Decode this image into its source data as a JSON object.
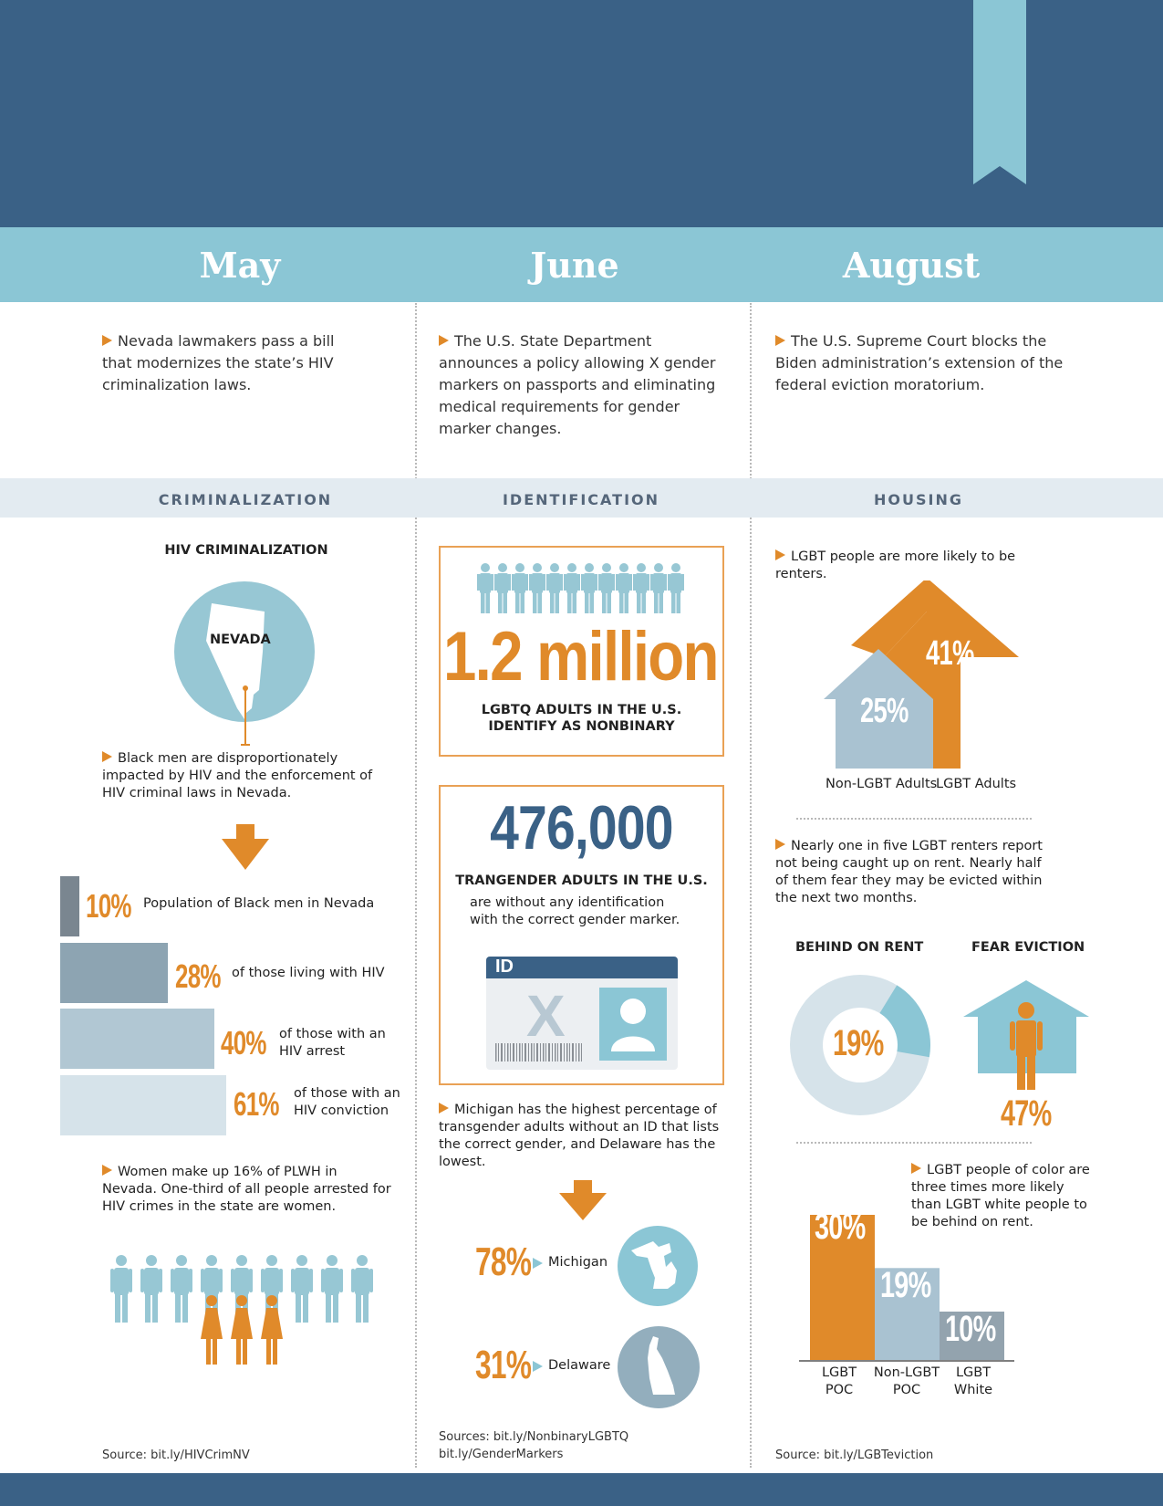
{
  "timeline": {
    "months": [
      "May",
      "June",
      "August"
    ],
    "may_text": "Nevada lawmakers pass a bill that modernizes the state’s HIV criminalization laws.",
    "june_text": "The U.S. State Department announces a policy allowing X gender markers on passports and eliminating medical requirements for gender marker changes.",
    "august_text": "The U.S. Supreme Court blocks the Biden administration’s extension of the federal eviction moratorium."
  },
  "sections": [
    "CRIMINALIZATION",
    "IDENTIFICATION",
    "HOUSING"
  ],
  "criminalization": {
    "heading": "HIV CRIMINALIZATION",
    "map_label": "NEVADA",
    "text1": "Black men are disproportionately impacted by HIV and the enforcement of HIV criminal laws in Nevada.",
    "bars": [
      {
        "pct": "10%",
        "value": 10,
        "label": "Population of Black men in Nevada",
        "color": "#7a8690"
      },
      {
        "pct": "28%",
        "value": 28,
        "label": "of those living with HIV",
        "color": "#8da4b2"
      },
      {
        "pct": "40%",
        "value": 40,
        "label": "of those with an HIV arrest",
        "color": "#b1c7d3"
      },
      {
        "pct": "61%",
        "value": 61,
        "label": "of those with an HIV conviction",
        "color": "#d6e3ea"
      }
    ],
    "text2": "Women make up 16% of PLWH in Nevada. One-third of all people arrested for HIV crimes in the state are women.",
    "source": "Source: bit.ly/HIVCrimNV"
  },
  "identification": {
    "stat1_value": "1.2 million",
    "stat1_text_line1": "LGBTQ ADULTS IN THE U.S.",
    "stat1_text_line2": "IDENTIFY AS NONBINARY",
    "stat2_value": "476,000",
    "stat2_heading": "TRANGENDER ADULTS IN THE U.S.",
    "stat2_text": "are without any identification with the correct gender marker.",
    "id_card_label": "ID",
    "id_card_marker": "X",
    "text": "Michigan has the highest percentage of transgender adults without an ID that lists the correct gender, and Delaware has the lowest.",
    "states": [
      {
        "pct": "78%",
        "name": "Michigan"
      },
      {
        "pct": "31%",
        "name": "Delaware"
      }
    ],
    "source_line1": "Sources: bit.ly/NonbinaryLGBTQ",
    "source_line2": "bit.ly/GenderMarkers"
  },
  "housing": {
    "text1": "LGBT people are more likely to be renters.",
    "text2": "Nearly one in five LGBT renters report not being caught up on rent. Nearly half of them fear they may be evicted within the next two months.",
    "behind_label": "BEHIND ON RENT",
    "behind_pct": "19%",
    "fear_label": "FEAR EVICTION",
    "fear_pct": "47%",
    "text3": "LGBT people of color are three times more likely than LGBT white people to be behind on rent.",
    "source": "Source: bit.ly/LGBTeviction"
  },
  "chart_data": [
    {
      "type": "bar",
      "categories": [
        "Non-LGBT Adults",
        "LGBT Adults"
      ],
      "values": [
        25,
        41
      ],
      "labels": [
        "25%",
        "41%"
      ]
    },
    {
      "type": "pie",
      "categories": [
        "BEHIND ON RENT"
      ],
      "values": [
        19
      ],
      "labels": [
        "19%"
      ]
    },
    {
      "type": "bar",
      "categories": [
        "LGBT POC",
        "Non-LGBT POC",
        "LGBT White"
      ],
      "values": [
        30,
        19,
        10
      ],
      "labels": [
        "30%",
        "19%",
        "10%"
      ]
    }
  ],
  "colors": {
    "navy": "#3a6186",
    "sky": "#8bc6d5",
    "orange": "#e08a2a",
    "band": "#e3ebf1"
  }
}
